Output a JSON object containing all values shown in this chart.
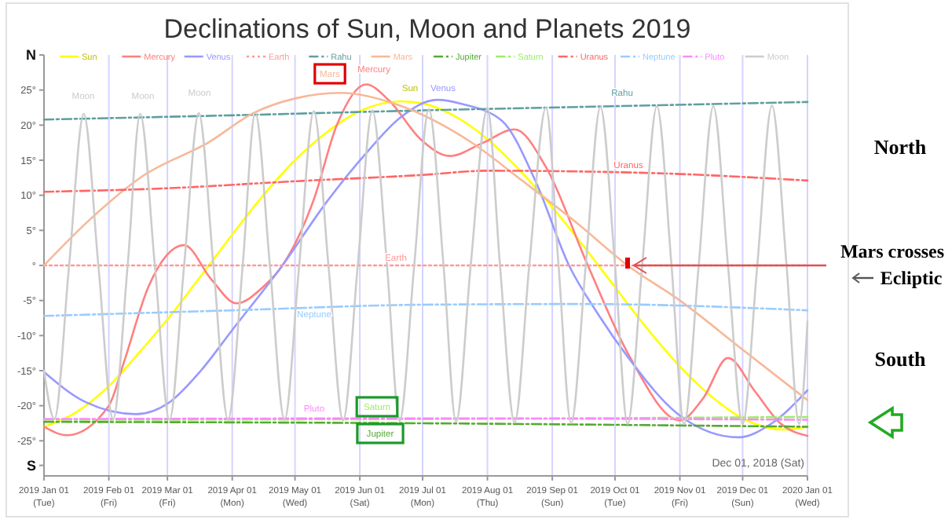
{
  "chart_data": {
    "type": "line",
    "title": "Declinations of Sun, Moon and Planets 2019",
    "xlim": [
      "2019-01-01",
      "2020-01-01"
    ],
    "xticks": [
      {
        "value": "2019-01-01",
        "label": "2019 Jan 01 (Tue)"
      },
      {
        "value": "2019-02-01",
        "label": "2019 Feb 01 (Fri)"
      },
      {
        "value": "2019-03-01",
        "label": "2019 Mar 01 (Fri)"
      },
      {
        "value": "2019-04-01",
        "label": "2019 Apr 01 (Mon)"
      },
      {
        "value": "2019-05-01",
        "label": "2019 May 01 (Wed)"
      },
      {
        "value": "2019-06-01",
        "label": "2019 Jun 01 (Sat)"
      },
      {
        "value": "2019-07-01",
        "label": "2019 Jul 01 (Mon)"
      },
      {
        "value": "2019-08-01",
        "label": "2019 Aug 01 (Thu)"
      },
      {
        "value": "2019-09-01",
        "label": "2019 Sep 01 (Sun)"
      },
      {
        "value": "2019-10-01",
        "label": "2019 Oct 01 (Tue)"
      },
      {
        "value": "2019-11-01",
        "label": "2019 Nov 01 (Fri)"
      },
      {
        "value": "2019-12-01",
        "label": "2019 Dec 01 (Sun)"
      },
      {
        "value": "2020-01-01",
        "label": "2020 Jan 01 (Wed)"
      }
    ],
    "ylim": [
      -30,
      30
    ],
    "yticks": [
      {
        "value": 30,
        "label": "N"
      },
      {
        "value": 25,
        "label": "25°"
      },
      {
        "value": 20,
        "label": "20°"
      },
      {
        "value": 15,
        "label": "15°"
      },
      {
        "value": 10,
        "label": "10°"
      },
      {
        "value": 5,
        "label": "5°"
      },
      {
        "value": 0,
        "label": "°"
      },
      {
        "value": -5,
        "label": "-5°"
      },
      {
        "value": -10,
        "label": "-10°"
      },
      {
        "value": -15,
        "label": "-15°"
      },
      {
        "value": -20,
        "label": "-20°"
      },
      {
        "value": -25,
        "label": "-25°"
      },
      {
        "value": -28.5,
        "label": "S"
      }
    ],
    "grid": "x",
    "legend": "top",
    "series": [
      {
        "name": "Sun",
        "color": "#ffff00",
        "line_style": "solid",
        "x": [
          "2019-01-01",
          "2019-01-16",
          "2019-02-01",
          "2019-02-15",
          "2019-03-01",
          "2019-03-15",
          "2019-04-01",
          "2019-04-15",
          "2019-05-01",
          "2019-05-15",
          "2019-06-01",
          "2019-06-21",
          "2019-07-01",
          "2019-07-15",
          "2019-08-01",
          "2019-08-15",
          "2019-09-01",
          "2019-09-15",
          "2019-10-01",
          "2019-10-15",
          "2019-11-01",
          "2019-11-15",
          "2019-12-01",
          "2019-12-21",
          "2020-01-01"
        ],
        "values": [
          -23.0,
          -21.0,
          -17.2,
          -12.6,
          -7.7,
          -2.3,
          4.4,
          9.7,
          15.0,
          18.7,
          22.0,
          23.4,
          23.1,
          21.5,
          18.0,
          14.0,
          8.3,
          3.1,
          -3.1,
          -8.5,
          -14.4,
          -18.4,
          -21.8,
          -23.4,
          -23.0
        ]
      },
      {
        "name": "Mercury",
        "color": "#ff8080",
        "line_style": "solid",
        "x": [
          "2019-01-01",
          "2019-01-12",
          "2019-02-01",
          "2019-02-08",
          "2019-02-20",
          "2019-03-09",
          "2019-03-22",
          "2019-04-03",
          "2019-04-16",
          "2019-04-25",
          "2019-05-10",
          "2019-05-21",
          "2019-06-04",
          "2019-06-15",
          "2019-06-30",
          "2019-07-14",
          "2019-07-30",
          "2019-08-14",
          "2019-08-29",
          "2019-09-18",
          "2019-10-08",
          "2019-11-01",
          "2019-11-12",
          "2019-11-24",
          "2019-12-07",
          "2019-12-19",
          "2020-01-01"
        ],
        "values": [
          -23.0,
          -24.2,
          -20,
          -14,
          -3,
          2.9,
          -2,
          -5.4,
          -3,
          0,
          9.4,
          20,
          25.8,
          23.5,
          18,
          15.6,
          17.5,
          19.4,
          14,
          0,
          -13,
          -22.1,
          -19,
          -13.2,
          -18,
          -22.5,
          -24.3
        ]
      },
      {
        "name": "Venus",
        "color": "#9999ff",
        "line_style": "solid",
        "x": [
          "2019-01-01",
          "2019-01-21",
          "2019-02-14",
          "2019-03-02",
          "2019-03-17",
          "2019-04-01",
          "2019-04-25",
          "2019-05-16",
          "2019-06-04",
          "2019-06-20",
          "2019-07-08",
          "2019-07-20",
          "2019-08-08",
          "2019-08-24",
          "2019-09-09",
          "2019-09-23",
          "2019-10-07",
          "2019-11-01",
          "2019-11-29",
          "2019-12-15",
          "2020-01-01"
        ],
        "values": [
          -15.2,
          -19.5,
          -21.2,
          -19.5,
          -15,
          -9.2,
          0,
          9,
          16,
          21,
          23.6,
          23,
          20.6,
          12,
          0,
          -7,
          -13,
          -21.4,
          -24.5,
          -22.5,
          -17.8
        ]
      },
      {
        "name": "Earth",
        "color": "#ff9999",
        "line_style": "dotted",
        "x": [
          "2019-01-01",
          "2020-01-01"
        ],
        "values": [
          0,
          0
        ]
      },
      {
        "name": "Rahu",
        "color": "#5f9f9f",
        "line_style": "dashed",
        "x": [
          "2019-01-01",
          "2019-04-01",
          "2019-07-01",
          "2019-10-01",
          "2020-01-01"
        ],
        "values": [
          20.8,
          21.4,
          22.1,
          22.7,
          23.3
        ]
      },
      {
        "name": "Mars",
        "color": "#f8b898",
        "line_style": "solid",
        "x": [
          "2019-01-01",
          "2019-01-21",
          "2019-02-17",
          "2019-03-21",
          "2019-04-11",
          "2019-05-01",
          "2019-05-23",
          "2019-06-20",
          "2019-07-24",
          "2019-08-18",
          "2019-09-13",
          "2019-10-07",
          "2019-11-01",
          "2019-12-01",
          "2020-01-01"
        ],
        "values": [
          0,
          6,
          12.7,
          17.6,
          21.7,
          23.8,
          24.6,
          22.8,
          17.6,
          12,
          6,
          0,
          -5,
          -12,
          -19.2
        ]
      },
      {
        "name": "Jupiter",
        "color": "#55aa33",
        "line_style": "dashed",
        "x": [
          "2019-01-01",
          "2019-07-01",
          "2020-01-01"
        ],
        "values": [
          -22.3,
          -22.5,
          -23.0
        ]
      },
      {
        "name": "Saturn",
        "color": "#99ee66",
        "line_style": "dashed",
        "x": [
          "2019-01-01",
          "2019-07-01",
          "2020-01-01"
        ],
        "values": [
          -22.0,
          -21.9,
          -21.6
        ]
      },
      {
        "name": "Uranus",
        "color": "#ff6666",
        "line_style": "dashed",
        "x": [
          "2019-01-01",
          "2019-03-01",
          "2019-05-01",
          "2019-07-01",
          "2019-08-01",
          "2019-10-15",
          "2020-01-01"
        ],
        "values": [
          10.5,
          11.0,
          12.0,
          12.9,
          13.5,
          13.2,
          12.1
        ]
      },
      {
        "name": "Neptune",
        "color": "#99ccff",
        "line_style": "dashed",
        "x": [
          "2019-01-01",
          "2019-04-01",
          "2019-07-01",
          "2019-09-15",
          "2020-01-01"
        ],
        "values": [
          -7.2,
          -6.4,
          -5.6,
          -5.5,
          -6.4
        ]
      },
      {
        "name": "Pluto",
        "color": "#ff88ff",
        "line_style": "dashed",
        "x": [
          "2019-01-01",
          "2019-07-01",
          "2020-01-01"
        ],
        "values": [
          -21.9,
          -21.8,
          -22.0
        ]
      },
      {
        "name": "Moon",
        "color": "#cccccc",
        "line_style": "solid",
        "x": [
          "2019-01-01",
          "2019-01-06",
          "2019-01-13",
          "2019-01-20",
          "2019-01-27",
          "2019-02-03",
          "2019-02-10",
          "2019-02-16",
          "2019-02-23",
          "2019-03-02",
          "2019-03-09",
          "2019-03-16",
          "2019-03-23",
          "2019-03-30",
          "2019-04-06",
          "2019-04-12",
          "2019-04-19",
          "2019-04-26",
          "2019-05-03",
          "2019-05-10",
          "2019-05-17",
          "2019-05-24",
          "2019-05-31",
          "2019-06-07",
          "2019-06-14",
          "2019-06-20",
          "2019-06-27",
          "2019-07-04",
          "2019-07-11",
          "2019-07-17",
          "2019-07-24",
          "2019-08-01",
          "2019-08-07",
          "2019-08-14",
          "2019-08-21",
          "2019-08-29",
          "2019-09-04",
          "2019-09-10",
          "2019-09-17",
          "2019-09-24",
          "2019-10-01",
          "2019-10-07",
          "2019-10-14",
          "2019-10-21",
          "2019-10-28",
          "2019-11-03",
          "2019-11-10",
          "2019-11-17",
          "2019-11-24",
          "2019-12-01",
          "2019-12-08",
          "2019-12-15",
          "2019-12-22",
          "2019-12-28",
          "2020-01-01"
        ],
        "values": [
          -15,
          -21.9,
          0,
          21.6,
          0,
          -21.9,
          0,
          21.6,
          0,
          -22.0,
          0,
          21.7,
          0,
          -22.0,
          0,
          21.8,
          0,
          -22.0,
          0,
          22.0,
          0,
          -22.1,
          0,
          22.1,
          0,
          -22.2,
          0,
          22.3,
          0,
          -22.3,
          0,
          22.4,
          0,
          -22.4,
          0,
          22.5,
          0,
          -22.5,
          0,
          22.6,
          0,
          -22.6,
          0,
          22.7,
          0,
          -22.6,
          0,
          22.7,
          0,
          -22.6,
          0,
          22.8,
          0,
          -22.6,
          -8
        ]
      }
    ],
    "annotations": [
      "Moon",
      "Moon",
      "Moon",
      "Mars",
      "Mercury",
      "Sun",
      "Venus",
      "Rahu",
      "Uranus",
      "Earth",
      "Neptune",
      "Pluto",
      "Saturn",
      "Jupiter",
      {
        "text": "Mars crosses Ecliptic",
        "x": "2019-10-07",
        "y": 0
      },
      "North",
      "South",
      "Dec 01, 2018 (Sat)"
    ]
  }
}
